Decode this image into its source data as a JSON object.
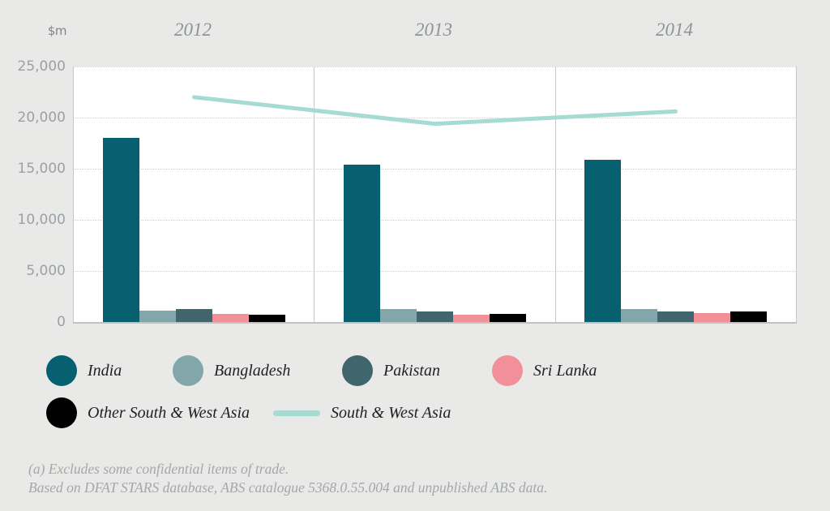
{
  "chart": {
    "unit_label": "$m",
    "background_color": "#e9e9e7",
    "plot_background_color": "#ffffff",
    "grid_color": "#cfcfcd",
    "axis_text_color": "#99a1a7",
    "year_text_color": "#8c939a"
  },
  "chart_data": {
    "type": "bar",
    "note": "grouped bar chart with line overlay, one panel per year",
    "categories": [
      "2012",
      "2013",
      "2014"
    ],
    "ylabel": "$m",
    "ylim": [
      0,
      25000
    ],
    "yticks": [
      0,
      5000,
      10000,
      15000,
      20000,
      25000
    ],
    "ytick_labels": [
      "0",
      "5,000",
      "10,000",
      "15,000",
      "20,000",
      "25,000"
    ],
    "grid": "dotted horizontal",
    "legend_position": "below",
    "bar_series": [
      {
        "name": "India",
        "color": "#06606f",
        "values": [
          18000,
          15400,
          15900
        ]
      },
      {
        "name": "Bangladesh",
        "color": "#82a6aa",
        "values": [
          1100,
          1250,
          1250
        ]
      },
      {
        "name": "Pakistan",
        "color": "#40656c",
        "values": [
          1300,
          1050,
          1050
        ]
      },
      {
        "name": "Sri Lanka",
        "color": "#f2909a",
        "values": [
          800,
          750,
          850
        ]
      },
      {
        "name": "Other South & West Asia",
        "color": "#000000",
        "values": [
          750,
          800,
          1000
        ]
      }
    ],
    "line_series": [
      {
        "name": "South & West Asia",
        "color": "#a5dbd3",
        "values": [
          22000,
          19400,
          20600
        ]
      }
    ]
  },
  "footnotes": [
    "(a) Excludes some confidential items of trade.",
    "Based on DFAT STARS database, ABS catalogue 5368.0.55.004 and unpublished ABS data."
  ]
}
